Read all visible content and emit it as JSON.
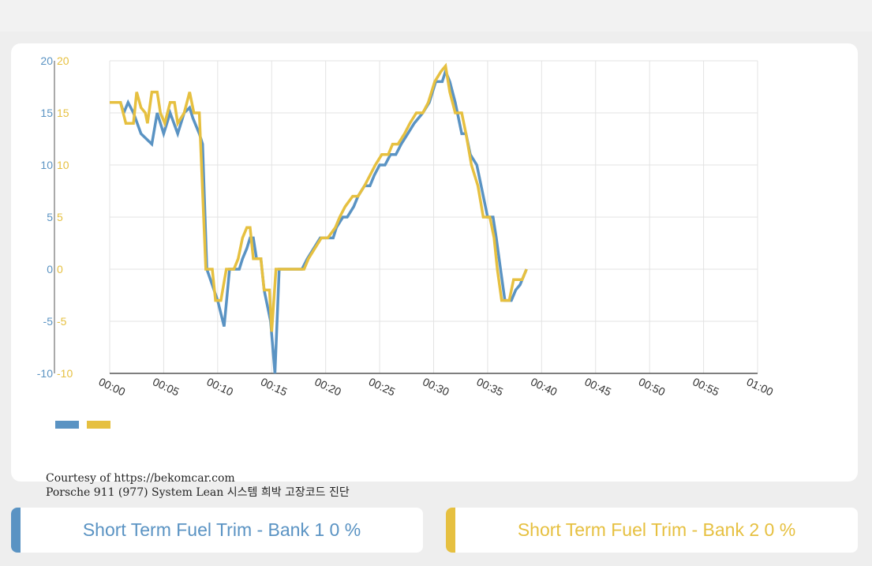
{
  "chart_data": {
    "type": "line",
    "xlabel": "",
    "ylabel": "",
    "x_ticks": [
      "00:00",
      "00:05",
      "00:10",
      "00:15",
      "00:20",
      "00:25",
      "00:30",
      "00:35",
      "00:40",
      "00:45",
      "00:50",
      "00:55",
      "01:00"
    ],
    "x_range_seconds": [
      0,
      60
    ],
    "ylim": [
      -10,
      20
    ],
    "y_ticks": [
      -10,
      -5,
      0,
      5,
      10,
      15,
      20
    ],
    "grid": true,
    "legend": "bottom-left",
    "series": [
      {
        "color": "#5a93c3",
        "axis": "left",
        "points": [
          [
            0,
            16
          ],
          [
            1,
            16
          ],
          [
            1.3,
            15
          ],
          [
            1.7,
            16
          ],
          [
            2.2,
            15
          ],
          [
            2.9,
            13
          ],
          [
            3.9,
            12
          ],
          [
            4.4,
            15
          ],
          [
            5,
            13
          ],
          [
            5.6,
            15
          ],
          [
            6.3,
            13
          ],
          [
            6.9,
            15
          ],
          [
            7.4,
            15.5
          ],
          [
            7.7,
            14.5
          ],
          [
            8.3,
            13
          ],
          [
            8.6,
            12
          ],
          [
            9,
            0
          ],
          [
            10,
            -3
          ],
          [
            10.6,
            -5.5
          ],
          [
            11.1,
            0
          ],
          [
            12,
            0
          ],
          [
            12.3,
            1
          ],
          [
            12.7,
            2
          ],
          [
            13,
            3
          ],
          [
            13.3,
            3
          ],
          [
            13.6,
            1
          ],
          [
            14,
            1
          ],
          [
            14.3,
            -2
          ],
          [
            14.9,
            -5
          ],
          [
            15.3,
            -10
          ],
          [
            15.7,
            0
          ],
          [
            17.8,
            0
          ],
          [
            18.3,
            1
          ],
          [
            18.9,
            2
          ],
          [
            19.5,
            3
          ],
          [
            20,
            3
          ],
          [
            20.7,
            3
          ],
          [
            21,
            4
          ],
          [
            21.6,
            5
          ],
          [
            22,
            5
          ],
          [
            22.6,
            6
          ],
          [
            23,
            7
          ],
          [
            23.6,
            8
          ],
          [
            24.1,
            8
          ],
          [
            24.5,
            9
          ],
          [
            25,
            10
          ],
          [
            25.5,
            10
          ],
          [
            26,
            11
          ],
          [
            26.5,
            11
          ],
          [
            27,
            12
          ],
          [
            27.6,
            13
          ],
          [
            28.2,
            14
          ],
          [
            29,
            15
          ],
          [
            29.6,
            16
          ],
          [
            30.2,
            18
          ],
          [
            30.8,
            18
          ],
          [
            31.1,
            19
          ],
          [
            31.5,
            18
          ],
          [
            32,
            16
          ],
          [
            32.6,
            13
          ],
          [
            33,
            13
          ],
          [
            33.4,
            11
          ],
          [
            34,
            10
          ],
          [
            34.4,
            8
          ],
          [
            35,
            5
          ],
          [
            35.5,
            5
          ],
          [
            35.8,
            3
          ],
          [
            36.2,
            0
          ],
          [
            36.6,
            -3
          ],
          [
            37.2,
            -3
          ],
          [
            37.6,
            -2
          ],
          [
            38,
            -1.5
          ],
          [
            38.6,
            0
          ]
        ]
      },
      {
        "color": "#e6c040",
        "axis": "right",
        "points": [
          [
            0,
            16
          ],
          [
            1,
            16
          ],
          [
            1.5,
            14
          ],
          [
            2.2,
            14
          ],
          [
            2.5,
            17
          ],
          [
            2.9,
            15.5
          ],
          [
            3.3,
            15
          ],
          [
            3.5,
            14
          ],
          [
            3.9,
            17
          ],
          [
            4.4,
            17
          ],
          [
            4.7,
            15
          ],
          [
            5.1,
            14
          ],
          [
            5.6,
            16
          ],
          [
            6,
            16
          ],
          [
            6.3,
            14
          ],
          [
            6.9,
            15
          ],
          [
            7.4,
            17
          ],
          [
            7.8,
            15
          ],
          [
            8.3,
            15
          ],
          [
            8.9,
            0
          ],
          [
            9.5,
            0
          ],
          [
            9.8,
            -3
          ],
          [
            10.3,
            -3
          ],
          [
            10.8,
            0
          ],
          [
            11.5,
            0
          ],
          [
            11.9,
            1
          ],
          [
            12.3,
            3
          ],
          [
            12.7,
            4
          ],
          [
            13,
            4
          ],
          [
            13.3,
            1
          ],
          [
            14,
            1
          ],
          [
            14.3,
            -2
          ],
          [
            14.8,
            -2
          ],
          [
            15,
            -6
          ],
          [
            15.4,
            0
          ],
          [
            18,
            0
          ],
          [
            18.4,
            1
          ],
          [
            19,
            2
          ],
          [
            19.6,
            3
          ],
          [
            20.2,
            3
          ],
          [
            20.9,
            4
          ],
          [
            21.3,
            5
          ],
          [
            21.8,
            6
          ],
          [
            22.5,
            7
          ],
          [
            23,
            7
          ],
          [
            23.6,
            8
          ],
          [
            24.1,
            9
          ],
          [
            24.6,
            10
          ],
          [
            25.2,
            11
          ],
          [
            25.8,
            11
          ],
          [
            26.2,
            12
          ],
          [
            26.7,
            12
          ],
          [
            27.3,
            13
          ],
          [
            27.8,
            14
          ],
          [
            28.4,
            15
          ],
          [
            29,
            15
          ],
          [
            29.5,
            16
          ],
          [
            30.1,
            18
          ],
          [
            30.7,
            19
          ],
          [
            31.1,
            19.5
          ],
          [
            31.5,
            17
          ],
          [
            32,
            15
          ],
          [
            32.6,
            15
          ],
          [
            33,
            13
          ],
          [
            33.5,
            10
          ],
          [
            34.1,
            8
          ],
          [
            34.6,
            5
          ],
          [
            35.2,
            5
          ],
          [
            35.6,
            3
          ],
          [
            35.9,
            0
          ],
          [
            36.3,
            -3
          ],
          [
            37,
            -3
          ],
          [
            37.4,
            -1
          ],
          [
            38.2,
            -1
          ],
          [
            38.6,
            0
          ]
        ]
      }
    ]
  },
  "footer": {
    "credit_line1": "Courtesy of https://bekomcar.com",
    "credit_line2": "Porsche 911 (977) System Lean 시스템 희박 고장코드 진단"
  },
  "buttons": {
    "bank1": "Short Term Fuel Trim - Bank 1 0 %",
    "bank2": "Short Term Fuel Trim - Bank 2 0 %"
  },
  "colors": {
    "bank1": "#5a93c3",
    "bank2": "#e6c040",
    "grid": "#e3e3e3",
    "axis": "#555555"
  }
}
